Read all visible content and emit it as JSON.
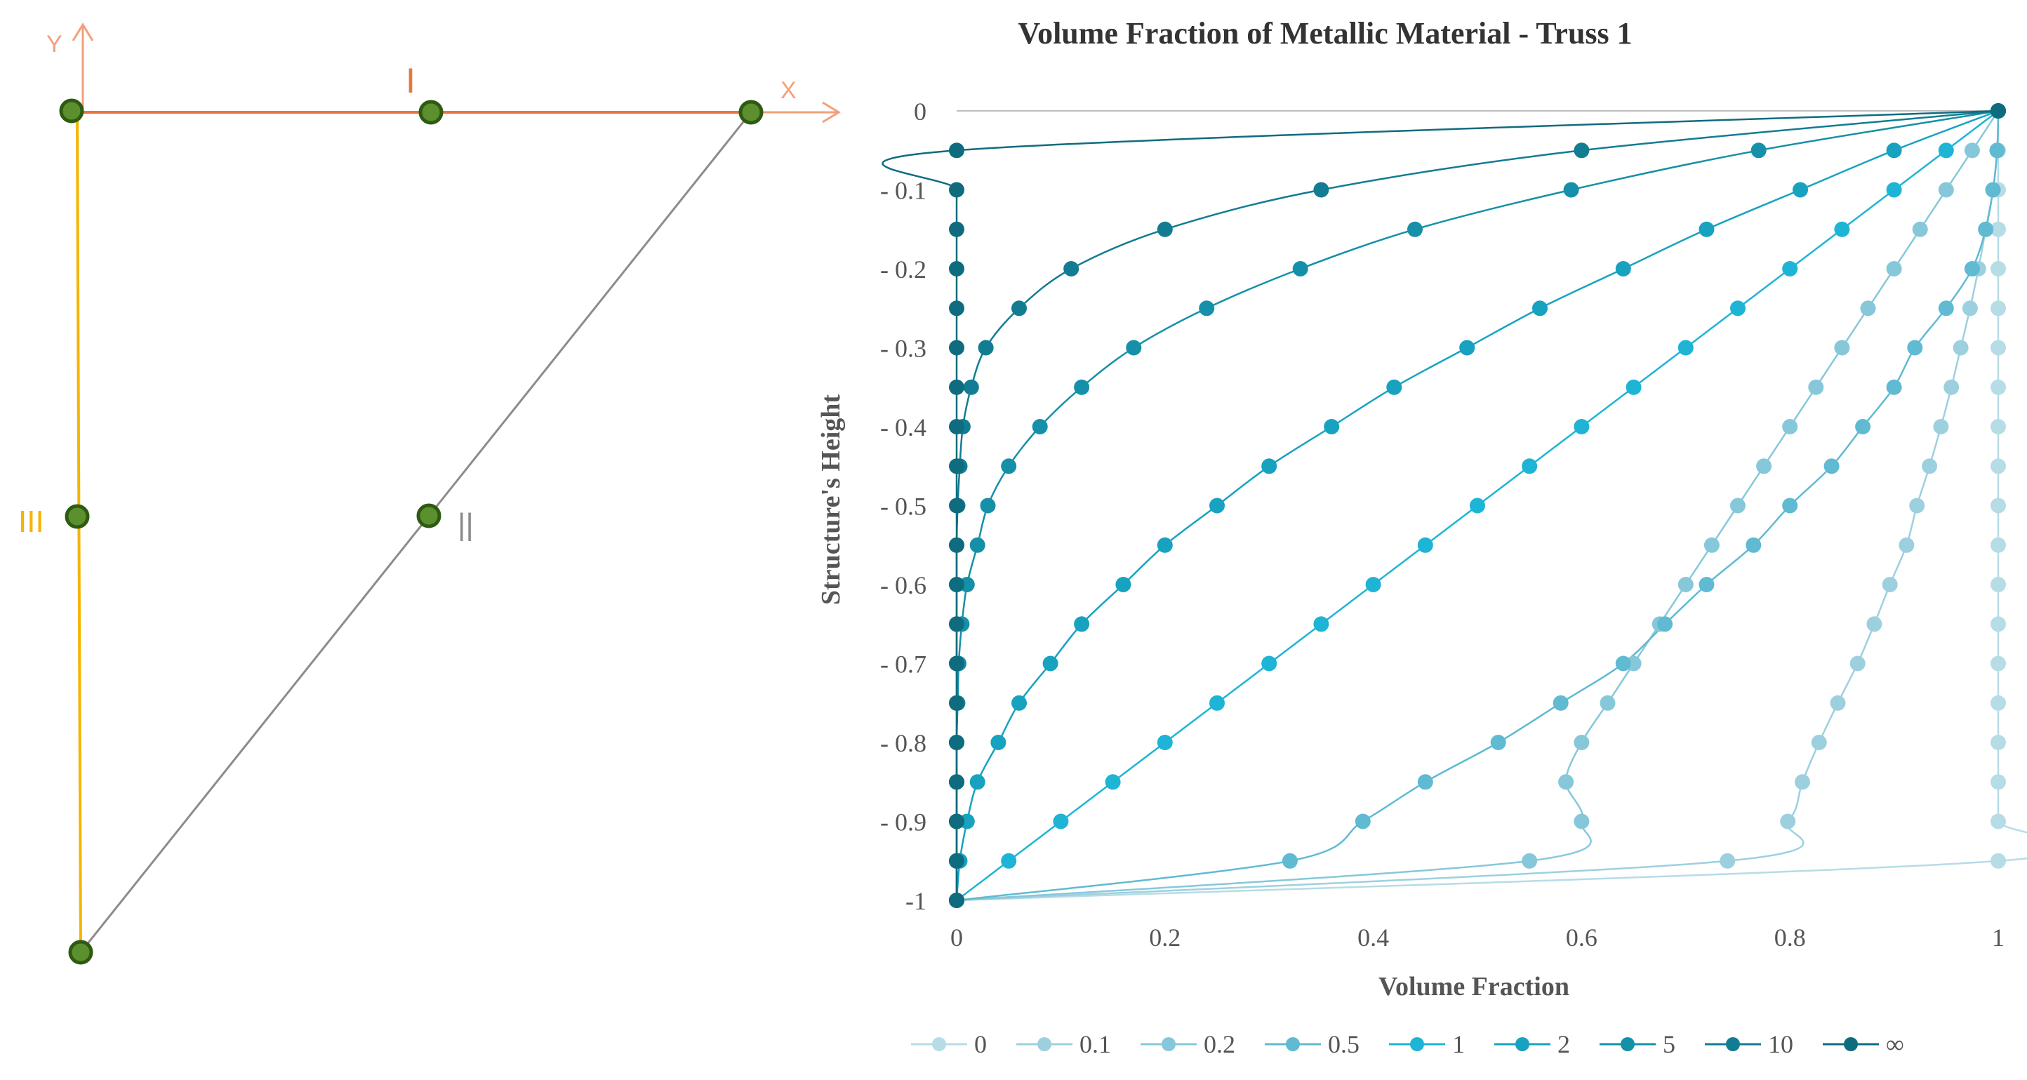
{
  "diagram": {
    "axis_y_label": "Y",
    "axis_x_label": "X",
    "members": [
      {
        "id": "I",
        "label": "I",
        "color": "#E8763C"
      },
      {
        "id": "II",
        "label": "||",
        "color": "#8C8C8C"
      },
      {
        "id": "III",
        "label": "III",
        "color": "#F5B400"
      }
    ],
    "node_color": "#5C8F2E",
    "node_outline": "#2E5A12"
  },
  "chart_data": {
    "type": "line",
    "title": "Volume Fraction  of Metallic Material - Truss 1",
    "xlabel": "Volume Fraction",
    "ylabel": "Structure's Height",
    "xlim": [
      0,
      1
    ],
    "ylim": [
      -1,
      0
    ],
    "x_ticks": [
      "0",
      "0.2",
      "0.4",
      "0.6",
      "0.8",
      "1"
    ],
    "y_ticks": [
      "0",
      "- 0.1",
      "- 0.2",
      "- 0.3",
      "- 0.4",
      "- 0.5",
      "- 0.6",
      "- 0.7",
      "- 0.8",
      "- 0.9",
      "-1"
    ],
    "y_values": [
      0,
      -0.05,
      -0.1,
      -0.15,
      -0.2,
      -0.25,
      -0.3,
      -0.35,
      -0.4,
      -0.45,
      -0.5,
      -0.55,
      -0.6,
      -0.65,
      -0.7,
      -0.75,
      -0.8,
      -0.85,
      -0.9,
      -0.95,
      -1
    ],
    "legend_position": "bottom",
    "series": [
      {
        "name": "0",
        "color": "#B6DCE6",
        "x": [
          1,
          1,
          1,
          1,
          1,
          1,
          1,
          1,
          1,
          1,
          1,
          1,
          1,
          1,
          1,
          1,
          1,
          1,
          1,
          1,
          0
        ]
      },
      {
        "name": "0.1",
        "color": "#9DD0DF",
        "x": [
          1,
          0.999,
          0.995,
          0.988,
          0.981,
          0.973,
          0.964,
          0.955,
          0.945,
          0.934,
          0.922,
          0.912,
          0.896,
          0.881,
          0.865,
          0.846,
          0.828,
          0.812,
          0.798,
          0.74,
          0
        ]
      },
      {
        "name": "0.2",
        "color": "#86C8DA",
        "x": [
          1,
          0.975,
          0.95,
          0.925,
          0.9,
          0.875,
          0.85,
          0.825,
          0.8,
          0.775,
          0.75,
          0.725,
          0.7,
          0.675,
          0.65,
          0.625,
          0.6,
          0.585,
          0.6,
          0.55,
          0
        ]
      },
      {
        "name": "0.5",
        "color": "#5FBAD2",
        "x": [
          1,
          0.999,
          0.995,
          0.988,
          0.975,
          0.95,
          0.92,
          0.9,
          0.87,
          0.84,
          0.8,
          0.765,
          0.72,
          0.68,
          0.64,
          0.58,
          0.52,
          0.45,
          0.39,
          0.32,
          0
        ]
      },
      {
        "name": "1",
        "color": "#1EB4D6",
        "x": [
          1,
          0.95,
          0.9,
          0.85,
          0.8,
          0.75,
          0.7,
          0.65,
          0.6,
          0.55,
          0.5,
          0.45,
          0.4,
          0.35,
          0.3,
          0.25,
          0.2,
          0.15,
          0.1,
          0.05,
          0
        ]
      },
      {
        "name": "2",
        "color": "#17A2C0",
        "x": [
          1,
          0.9,
          0.81,
          0.72,
          0.64,
          0.56,
          0.49,
          0.42,
          0.36,
          0.3,
          0.25,
          0.2,
          0.16,
          0.12,
          0.09,
          0.06,
          0.04,
          0.02,
          0.01,
          0.003,
          0
        ]
      },
      {
        "name": "5",
        "color": "#1590A8",
        "x": [
          1,
          0.77,
          0.59,
          0.44,
          0.33,
          0.24,
          0.17,
          0.12,
          0.08,
          0.05,
          0.03,
          0.02,
          0.01,
          0.005,
          0.002,
          0.001,
          0,
          0,
          0,
          0,
          0
        ]
      },
      {
        "name": "10",
        "color": "#127C92",
        "x": [
          1,
          0.6,
          0.35,
          0.2,
          0.11,
          0.06,
          0.028,
          0.014,
          0.006,
          0.003,
          0.001,
          0,
          0,
          0,
          0,
          0,
          0,
          0,
          0,
          0,
          0
        ]
      },
      {
        "name": "∞",
        "color": "#0F6C7F",
        "x": [
          1,
          0,
          0,
          0,
          0,
          0,
          0,
          0,
          0,
          0,
          0,
          0,
          0,
          0,
          0,
          0,
          0,
          0,
          0,
          0,
          0
        ]
      }
    ]
  }
}
